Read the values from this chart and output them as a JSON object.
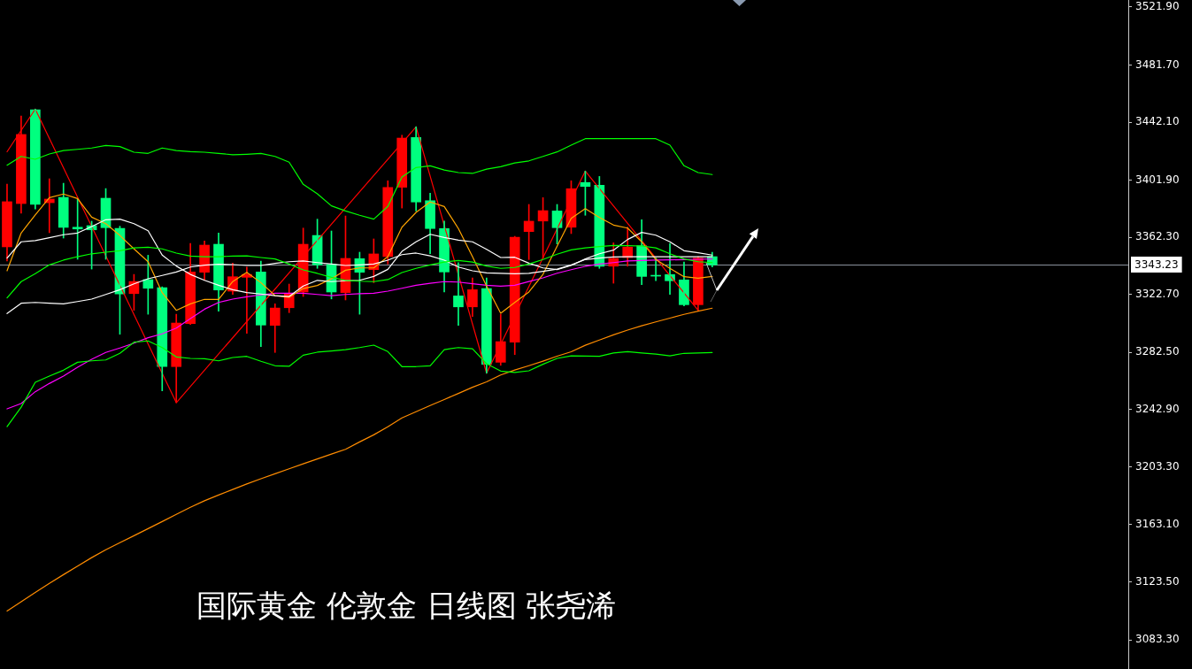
{
  "chart_data": {
    "type": "candlestick",
    "annotations": [
      "国际黄金 伦敦金 日线图 张尧浠"
    ],
    "categories": [
      null,
      null,
      null,
      null,
      null,
      null,
      null,
      null,
      null,
      null,
      null,
      null,
      null,
      null,
      null,
      null,
      null,
      null,
      null,
      null,
      null,
      null,
      null,
      null,
      null,
      null,
      null,
      null,
      null,
      null,
      null,
      null,
      null,
      null,
      null,
      null,
      null,
      null,
      null,
      null,
      null,
      null,
      null,
      null,
      null,
      null,
      null,
      null,
      null,
      null,
      null,
      null,
      null,
      null,
      null,
      null,
      null,
      null,
      null,
      null,
      null,
      null,
      null,
      null,
      null,
      null,
      null,
      null,
      null,
      null,
      null,
      null,
      null,
      null,
      null,
      null,
      null,
      null,
      null,
      null
    ],
    "ohlc": [
      [
        3355.7,
        3399.2,
        3345.9,
        3387.0
      ],
      [
        3385.7,
        3446.4,
        3379.0,
        3433.6
      ],
      [
        3450.7,
        3451.2,
        3382.0,
        3385.1
      ],
      [
        3386.3,
        3402.9,
        3365.5,
        3388.8
      ],
      [
        3390.0,
        3399.8,
        3361.8,
        3369.2
      ],
      [
        3369.3,
        3388.8,
        3347.1,
        3368.1
      ],
      [
        3370.4,
        3373.5,
        3340.3,
        3367.5
      ],
      [
        3389.4,
        3396.1,
        3347.1,
        3369.0
      ],
      [
        3368.5,
        3370.0,
        3295.1,
        3323.0
      ],
      [
        3323.3,
        3336.6,
        3311.7,
        3331.7
      ],
      [
        3333.0,
        3349.9,
        3309.0,
        3327.0
      ],
      [
        3327.4,
        3328.0,
        3255.9,
        3272.7
      ],
      [
        3272.7,
        3309.0,
        3247.7,
        3302.9
      ],
      [
        3302.5,
        3358.1,
        3301.9,
        3338.3
      ],
      [
        3338.1,
        3359.8,
        3332.5,
        3356.9
      ],
      [
        3357.5,
        3365.3,
        3311.1,
        3325.8
      ],
      [
        3325.0,
        3344.4,
        3322.7,
        3335.0
      ],
      [
        3334.6,
        3341.7,
        3295.7,
        3336.6
      ],
      [
        3338.3,
        3345.8,
        3286.5,
        3301.5
      ],
      [
        3301.3,
        3316.2,
        3282.5,
        3313.3
      ],
      [
        3313.5,
        3329.9,
        3310.1,
        3323.3
      ],
      [
        3324.4,
        3368.7,
        3321.3,
        3357.5
      ],
      [
        3363.6,
        3374.9,
        3340.8,
        3343.2
      ],
      [
        3343.6,
        3366.7,
        3319.6,
        3324.4
      ],
      [
        3324.0,
        3377.1,
        3318.9,
        3347.7
      ],
      [
        3347.5,
        3352.0,
        3309.0,
        3338.1
      ],
      [
        3339.9,
        3361.2,
        3330.9,
        3350.8
      ],
      [
        3348.9,
        3401.5,
        3343.8,
        3396.8
      ],
      [
        3397.0,
        3433.1,
        3382.6,
        3431.1
      ],
      [
        3431.5,
        3438.9,
        3380.6,
        3386.8
      ],
      [
        3387.7,
        3392.9,
        3350.9,
        3368.4
      ],
      [
        3368.4,
        3373.5,
        3324.4,
        3338.3
      ],
      [
        3321.7,
        3344.8,
        3301.3,
        3314.1
      ],
      [
        3314.1,
        3334.2,
        3307.4,
        3326.0
      ],
      [
        3326.8,
        3334.2,
        3268.1,
        3274.3
      ],
      [
        3275.7,
        3309.0,
        3273.6,
        3290.0
      ],
      [
        3289.6,
        3363.0,
        3281.0,
        3362.4
      ],
      [
        3366.3,
        3385.1,
        3346.9,
        3373.5
      ],
      [
        3373.6,
        3389.8,
        3347.9,
        3380.8
      ],
      [
        3380.6,
        3385.1,
        3357.7,
        3369.0
      ],
      [
        3369.3,
        3401.5,
        3364.9,
        3396.0
      ],
      [
        3400.3,
        3408.2,
        3377.6,
        3397.6
      ],
      [
        3398.4,
        3404.5,
        3340.8,
        3342.3
      ],
      [
        3342.3,
        3358.5,
        3330.5,
        3347.7
      ],
      [
        3348.3,
        3369.3,
        3342.3,
        3355.5
      ],
      [
        3356.5,
        3374.5,
        3329.5,
        3335.2
      ],
      [
        3336.0,
        3347.9,
        3332.2,
        3335.4
      ],
      [
        3336.5,
        3358.1,
        3322.7,
        3332.2
      ],
      [
        3332.8,
        3345.2,
        3314.8,
        3315.6
      ],
      [
        3315.6,
        3348.9,
        3311.7,
        3347.9
      ],
      [
        3348.9,
        3352.0,
        3341.7,
        3343.2
      ],
      null,
      null,
      null,
      null,
      null,
      null,
      null,
      null,
      null,
      null,
      null,
      null,
      null,
      null,
      null,
      null,
      null,
      null,
      null,
      null,
      null,
      null,
      null,
      null,
      null,
      null,
      null,
      null,
      null
    ],
    "colors": [
      "#ff0000",
      "#ff0000",
      "#00ff7f",
      "#ff0000",
      "#00ff7f",
      "#00ff7f",
      "#00ff7f",
      "#00ff7f",
      "#00ff7f",
      "#ff0000",
      "#00ff7f",
      "#00ff7f",
      "#ff0000",
      "#ff0000",
      "#ff0000",
      "#00ff7f",
      "#ff0000",
      "#ff0000",
      "#00ff7f",
      "#ff0000",
      "#ff0000",
      "#ff0000",
      "#00ff7f",
      "#00ff7f",
      "#ff0000",
      "#00ff7f",
      "#ff0000",
      "#ff0000",
      "#ff0000",
      "#00ff7f",
      "#00ff7f",
      "#00ff7f",
      "#00ff7f",
      "#ff0000",
      "#00ff7f",
      "#ff0000",
      "#ff0000",
      "#ff0000",
      "#ff0000",
      "#00ff7f",
      "#ff0000",
      "#00ff7f",
      "#00ff7f",
      "#ff0000",
      "#ff0000",
      "#00ff7f",
      "#00ff7f",
      "#00ff7f",
      "#00ff7f",
      "#ff0000",
      "#00ff7f",
      null,
      null,
      null,
      null,
      null,
      null,
      null,
      null,
      null,
      null,
      null,
      null,
      null,
      null,
      null,
      null,
      null,
      null,
      null,
      null,
      null,
      null,
      null,
      null,
      null,
      null,
      null,
      null,
      null
    ],
    "series": [
      {
        "type": "line",
        "color": "#00ff00",
        "values": [
          3412.3,
          3418.4,
          3416.4,
          3420.1,
          3422.5,
          3423.3,
          3424.2,
          3426.0,
          3425.2,
          3421.3,
          3420.5,
          3424.2,
          3422.5,
          3421.7,
          3421.3,
          3420.5,
          3419.5,
          3419.9,
          3420.5,
          3418.4,
          3414.4,
          3399.0,
          3392.5,
          3384.1,
          3380.6,
          3377.6,
          3374.9,
          3383.7,
          3404.1,
          3410.7,
          3411.9,
          3409.0,
          3407.2,
          3406.6,
          3409.6,
          3411.3,
          3413.9,
          3415.3,
          3418.4,
          3421.5,
          3426.2,
          3430.7,
          3430.7,
          3430.7,
          3430.7,
          3430.7,
          3430.7,
          3426.2,
          3411.9,
          3407.2,
          3405.8,
          null,
          null,
          null,
          null,
          null,
          null,
          null,
          null,
          null,
          null,
          null,
          null,
          null,
          null,
          null,
          null,
          null,
          null,
          null,
          null,
          null,
          null,
          null,
          null,
          null,
          null,
          null,
          null,
          null
        ]
      },
      {
        "type": "line",
        "color": "#00ff00",
        "values": [
          3320.3,
          3331.6,
          3337.1,
          3343.2,
          3346.5,
          3348.9,
          3350.9,
          3352.0,
          3353.0,
          3355.0,
          3355.5,
          3354.3,
          3351.4,
          3349.3,
          3348.9,
          3348.9,
          3349.3,
          3349.5,
          3348.3,
          3347.3,
          3343.8,
          3339.7,
          3337.3,
          3334.6,
          3332.5,
          3331.9,
          3331.6,
          3333.0,
          3337.9,
          3340.8,
          3343.2,
          3345.2,
          3346.3,
          3345.2,
          3342.4,
          3340.8,
          3341.4,
          3343.8,
          3346.9,
          3350.6,
          3353.6,
          3355.0,
          3355.9,
          3356.7,
          3356.5,
          3356.3,
          3355.0,
          3350.9,
          3347.3,
          3345.4,
          3344.8,
          null,
          null,
          null,
          null,
          null,
          null,
          null,
          null,
          null,
          null,
          null,
          null,
          null,
          null,
          null,
          null,
          null,
          null,
          null,
          null,
          null,
          null,
          null,
          null,
          null,
          null,
          null,
          null,
          null
        ]
      },
      {
        "type": "line",
        "color": "#00ff00",
        "values": [
          3231.1,
          3244.6,
          3261.8,
          3266.1,
          3270.2,
          3275.7,
          3276.7,
          3277.3,
          3281.9,
          3289.6,
          3290.5,
          3285.9,
          3279.4,
          3278.4,
          3278.2,
          3276.7,
          3279.0,
          3279.8,
          3276.4,
          3273.3,
          3272.9,
          3280.6,
          3282.7,
          3283.5,
          3284.5,
          3285.9,
          3287.6,
          3283.1,
          3272.7,
          3272.7,
          3273.3,
          3284.5,
          3285.9,
          3285.1,
          3274.7,
          3269.6,
          3268.7,
          3269.8,
          3274.3,
          3278.4,
          3280.2,
          3280.0,
          3279.8,
          3282.1,
          3283.1,
          3282.2,
          3281.4,
          3280.2,
          3281.9,
          3282.2,
          3282.5,
          null,
          null,
          null,
          null,
          null,
          null,
          null,
          null,
          null,
          null,
          null,
          null,
          null,
          null,
          null,
          null,
          null,
          null,
          null,
          null,
          null,
          null,
          null,
          null,
          null,
          null,
          null,
          null,
          null
        ]
      },
      {
        "type": "line",
        "color": "#ffffff",
        "values": [
          3347.9,
          3359.2,
          3360.0,
          3362.0,
          3364.1,
          3365.3,
          3369.8,
          3374.5,
          3374.9,
          3371.8,
          3366.9,
          3350.0,
          3342.4,
          3336.6,
          3332.5,
          3329.1,
          3326.0,
          3324.0,
          3323.0,
          3321.9,
          3321.3,
          3328.5,
          3332.5,
          3331.6,
          3332.2,
          3332.5,
          3335.2,
          3340.1,
          3352.6,
          3359.2,
          3364.4,
          3362.2,
          3360.4,
          3359.2,
          3354.0,
          3348.3,
          3348.5,
          3344.4,
          3341.1,
          3339.9,
          3342.8,
          3347.3,
          3350.9,
          3353.4,
          3360.8,
          3365.7,
          3363.8,
          3359.2,
          3353.0,
          3351.6,
          3350.0,
          null,
          null,
          null,
          null,
          null,
          null,
          null,
          null,
          null,
          null,
          null,
          null,
          null,
          null,
          null,
          null,
          null,
          null,
          null,
          null,
          null,
          null,
          null,
          null,
          null,
          null,
          null,
          null,
          null
        ]
      },
      {
        "type": "line",
        "color": "#ffffff",
        "values": [
          3309.5,
          3316.6,
          3317.2,
          3316.6,
          3316.2,
          3317.8,
          3319.5,
          3322.7,
          3326.0,
          3330.1,
          3333.6,
          3335.9,
          3338.3,
          3341.7,
          3343.0,
          3343.6,
          3343.4,
          3342.8,
          3342.8,
          3344.2,
          3345.4,
          3345.9,
          3344.8,
          3343.8,
          3342.8,
          3343.2,
          3343.8,
          3346.5,
          3350.3,
          3351.4,
          3349.5,
          3346.5,
          3341.7,
          3339.1,
          3337.7,
          3337.3,
          3337.1,
          3337.3,
          3338.7,
          3340.3,
          3343.2,
          3346.9,
          3347.9,
          3348.7,
          3348.9,
          3348.9,
          3348.9,
          3348.9,
          3348.9,
          3348.9,
          3348.9,
          null,
          null,
          null,
          null,
          null,
          null,
          null,
          null,
          null,
          null,
          null,
          null,
          null,
          null,
          null,
          null,
          null,
          null,
          null,
          null,
          null,
          null,
          null,
          null,
          null,
          null,
          null,
          null,
          null
        ]
      },
      {
        "type": "line",
        "color": "#ffa500",
        "values": [
          3339.1,
          3365.3,
          3377.9,
          3389.8,
          3392.3,
          3389.2,
          3376.3,
          3371.8,
          3363.6,
          3354.3,
          3345.4,
          3324.0,
          3311.7,
          3316.2,
          3319.3,
          3319.3,
          3331.6,
          3338.1,
          3330.9,
          3321.9,
          3320.7,
          3326.8,
          3328.9,
          3333.6,
          3339.5,
          3341.1,
          3341.1,
          3348.9,
          3369.3,
          3379.6,
          3386.8,
          3383.7,
          3368.4,
          3348.9,
          3328.5,
          3309.7,
          3317.2,
          3324.4,
          3336.6,
          3356.1,
          3375.5,
          3382.2,
          3376.1,
          3370.8,
          3368.7,
          3359.2,
          3346.9,
          3340.8,
          3335.0,
          3334.0,
          3335.2,
          null,
          null,
          null,
          null,
          null,
          null,
          null,
          null,
          null,
          null,
          null,
          null,
          null,
          null,
          null,
          null,
          null,
          null,
          null,
          null,
          null,
          null,
          null,
          null,
          null,
          null,
          null,
          null,
          null
        ]
      },
      {
        "type": "line",
        "color": "#ff00ff",
        "values": [
          3243.4,
          3247.1,
          3255.3,
          3261.0,
          3266.1,
          3272.2,
          3277.8,
          3282.5,
          3285.6,
          3289.0,
          3292.7,
          3295.4,
          3299.4,
          3306.0,
          3312.5,
          3317.2,
          3319.5,
          3321.1,
          3322.4,
          3323.6,
          3323.6,
          3323.6,
          3322.7,
          3321.9,
          3322.7,
          3323.2,
          3323.6,
          3325.0,
          3327.0,
          3329.1,
          3330.5,
          3331.6,
          3331.3,
          3330.1,
          3329.1,
          3328.5,
          3329.1,
          3331.7,
          3334.2,
          3337.4,
          3339.9,
          3342.2,
          3343.8,
          3344.8,
          3345.9,
          3346.3,
          3346.5,
          3346.7,
          3346.9,
          3347.1,
          3347.3,
          null,
          null,
          null,
          null,
          null,
          null,
          null,
          null,
          null,
          null,
          null,
          null,
          null,
          null,
          null,
          null,
          null,
          null,
          null,
          null,
          null,
          null,
          null,
          null,
          null,
          null,
          null,
          null,
          null
        ]
      },
      {
        "type": "line",
        "color": "#ff8c00",
        "values": [
          3103.3,
          3109.7,
          3116.1,
          3122.5,
          3128.5,
          3134.4,
          3140.3,
          3145.8,
          3150.7,
          3155.5,
          3160.4,
          3165.3,
          3170.3,
          3175.2,
          3179.7,
          3183.7,
          3187.5,
          3191.4,
          3195.0,
          3198.4,
          3201.9,
          3205.3,
          3208.7,
          3212.1,
          3215.4,
          3220.5,
          3225.4,
          3231.0,
          3237.1,
          3241.4,
          3245.7,
          3249.9,
          3254.1,
          3258.4,
          3262.1,
          3266.9,
          3270.3,
          3273.3,
          3276.5,
          3279.9,
          3283.0,
          3287.5,
          3291.1,
          3294.7,
          3298.0,
          3301.0,
          3303.7,
          3306.3,
          3308.9,
          3311.1,
          3313.2,
          null,
          null,
          null,
          null,
          null,
          null,
          null,
          null,
          null,
          null,
          null,
          null,
          null,
          null,
          null,
          null,
          null,
          null,
          null,
          null,
          null,
          null,
          null,
          null,
          null,
          null,
          null,
          null,
          null
        ]
      },
      {
        "type": "line",
        "color": "#ff0000",
        "values": [
          3421.6,
          null,
          3451.2,
          null,
          null,
          null,
          null,
          null,
          null,
          null,
          null,
          null,
          3247.7,
          null,
          null,
          null,
          null,
          null,
          null,
          null,
          null,
          null,
          null,
          null,
          null,
          null,
          null,
          null,
          null,
          3438.9,
          null,
          null,
          null,
          null,
          3268.1,
          null,
          null,
          null,
          null,
          null,
          null,
          3408.2,
          null,
          null,
          null,
          null,
          null,
          null,
          null,
          3311.7,
          null,
          null,
          null,
          null,
          null,
          null,
          null,
          null,
          null,
          null,
          null,
          null,
          null,
          null,
          null,
          null,
          null,
          null,
          null,
          null,
          null,
          null,
          null,
          null,
          null,
          null,
          null,
          null,
          null,
          null
        ]
      }
    ],
    "ylim": [
      3063.1,
      3526.8
    ],
    "yticks": [
      {
        "value": 3521.9,
        "label": "3521.90"
      },
      {
        "value": 3481.7,
        "label": "3481.70"
      },
      {
        "value": 3442.1,
        "label": "3442.10"
      },
      {
        "value": 3401.9,
        "label": "3401.90"
      },
      {
        "value": 3362.3,
        "label": "3362.30"
      },
      {
        "value": 3322.7,
        "label": "3322.70"
      },
      {
        "value": 3282.5,
        "label": "3282.50"
      },
      {
        "value": 3242.9,
        "label": "3242.90"
      },
      {
        "value": 3203.3,
        "label": "3203.30"
      },
      {
        "value": 3163.1,
        "label": "3163.10"
      },
      {
        "value": 3123.5,
        "label": "3123.50"
      },
      {
        "value": 3083.3,
        "label": "3083.30"
      }
    ],
    "ref_lines": [
      {
        "axis": "y",
        "value": 3343.23,
        "label": "3343.23",
        "color": "#8a929c"
      }
    ],
    "tick_labels": "y"
  }
}
